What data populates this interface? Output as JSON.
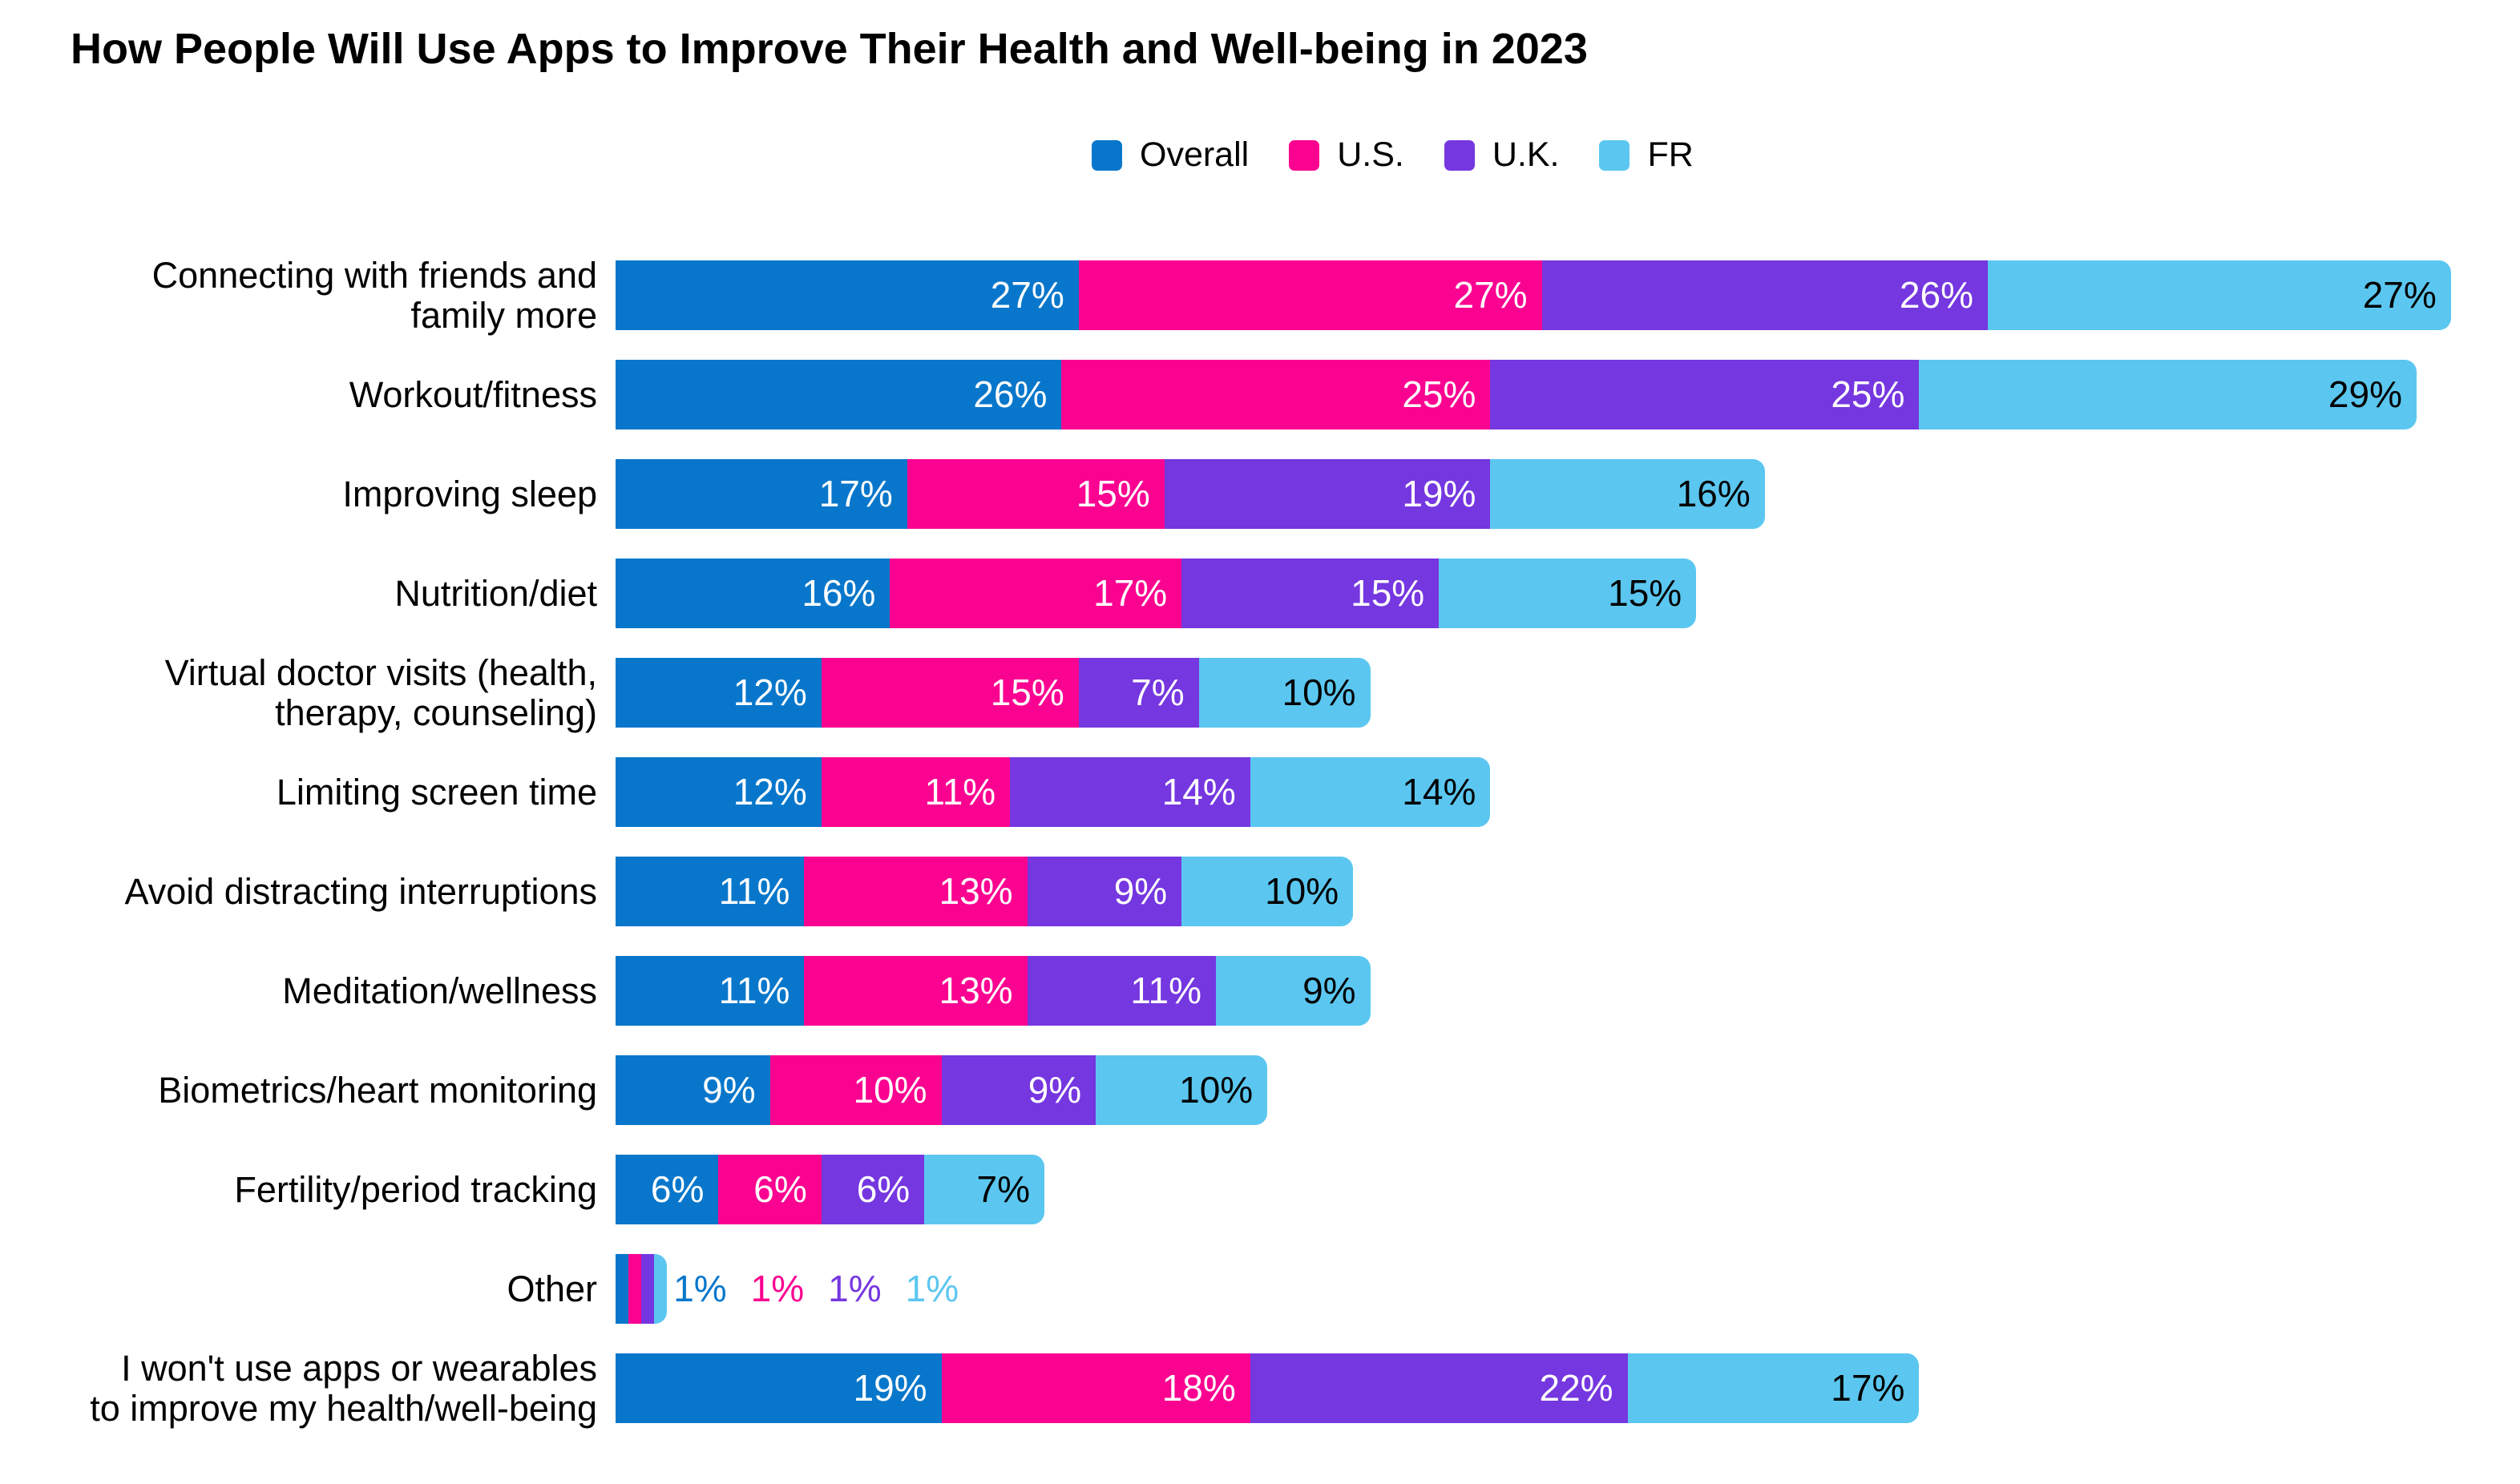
{
  "title": "How People Will Use Apps to Improve Their Health and Well-being in 2023",
  "chart_data": {
    "type": "bar",
    "orientation": "horizontal",
    "stacked": true,
    "grid": false,
    "legend_position": "top",
    "value_suffix": "%",
    "series": [
      {
        "name": "Overall",
        "color": "#0877CB",
        "label_color": "#FFFFFF"
      },
      {
        "name": "U.S.",
        "color": "#FB0391",
        "label_color": "#FFFFFF"
      },
      {
        "name": "U.K.",
        "color": "#7537E0",
        "label_color": "#FFFFFF"
      },
      {
        "name": "FR",
        "color": "#5BC7F0",
        "label_color": "#000000"
      }
    ],
    "categories": [
      {
        "label": "Connecting with friends and\nfamily more",
        "values": [
          27,
          27,
          26,
          27
        ]
      },
      {
        "label": "Workout/fitness",
        "values": [
          26,
          25,
          25,
          29
        ]
      },
      {
        "label": "Improving sleep",
        "values": [
          17,
          15,
          19,
          16
        ]
      },
      {
        "label": "Nutrition/diet",
        "values": [
          16,
          17,
          15,
          15
        ]
      },
      {
        "label": "Virtual doctor visits (health,\ntherapy, counseling)",
        "values": [
          12,
          15,
          7,
          10
        ]
      },
      {
        "label": "Limiting screen time",
        "values": [
          12,
          11,
          14,
          14
        ]
      },
      {
        "label": "Avoid distracting interruptions",
        "values": [
          11,
          13,
          9,
          10
        ]
      },
      {
        "label": "Meditation/wellness",
        "values": [
          11,
          13,
          11,
          9
        ]
      },
      {
        "label": "Biometrics/heart monitoring",
        "values": [
          9,
          10,
          9,
          10
        ]
      },
      {
        "label": "Fertility/period tracking",
        "values": [
          6,
          6,
          6,
          7
        ]
      },
      {
        "label": "Other",
        "values": [
          1,
          1,
          1,
          1
        ],
        "labels_outside": true
      },
      {
        "label": "I won't use apps or wearables\nto improve my health/well-being",
        "values": [
          19,
          18,
          22,
          17
        ]
      }
    ]
  }
}
